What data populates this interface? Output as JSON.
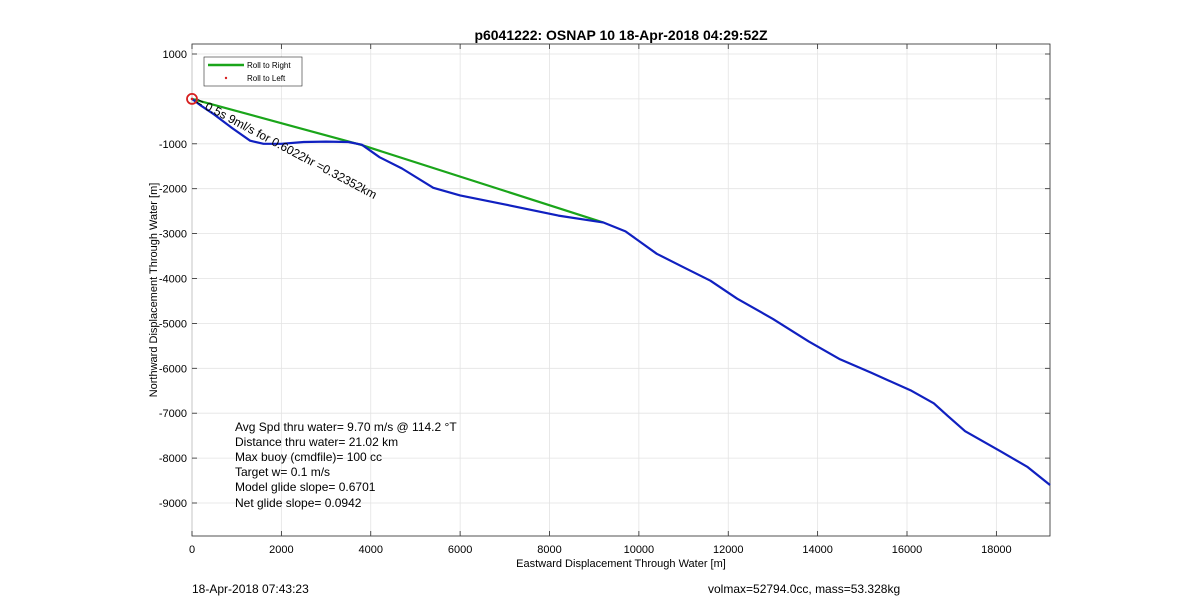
{
  "chart_data": {
    "type": "line",
    "title": "p6041222: OSNAP 10 18-Apr-2018 04:29:52Z",
    "xlabel": "Eastward Displacement Through Water [m]",
    "ylabel": "Northward Displacement Through Water [m]",
    "xlim": [
      0,
      19200
    ],
    "ylim": [
      -10000,
      1000
    ],
    "xticks": [
      0,
      2000,
      4000,
      6000,
      8000,
      10000,
      12000,
      14000,
      16000,
      18000
    ],
    "yticks": [
      1000,
      -1000,
      -2000,
      -3000,
      -4000,
      -5000,
      -6000,
      -7000,
      -8000,
      -9000
    ],
    "grid": true,
    "legend_placement": "top-left",
    "series": [
      {
        "name": "Roll to Right",
        "color": "#1aa51a",
        "x": [
          0,
          3800,
          9200
        ],
        "y": [
          0,
          -1030,
          -2750
        ]
      },
      {
        "name": "Roll to Left",
        "color": "#d62020",
        "marker_only": true,
        "x": [
          0
        ],
        "y": [
          0
        ]
      },
      {
        "name": "",
        "color": "#1020c0",
        "x": [
          0,
          200,
          500,
          900,
          1300,
          1600,
          2000,
          2500,
          3000,
          3500,
          3800,
          4200,
          4700,
          5400,
          6000,
          7000,
          8200,
          9200,
          9700,
          10400,
          11000,
          11600,
          12200,
          13000,
          13800,
          14500,
          15200,
          16100,
          16600,
          16900,
          17300,
          18100,
          18700,
          19200
        ],
        "y": [
          0,
          -150,
          -350,
          -650,
          -930,
          -1000,
          -1000,
          -960,
          -950,
          -960,
          -1020,
          -1300,
          -1550,
          -1980,
          -2150,
          -2350,
          -2600,
          -2750,
          -2950,
          -3450,
          -3750,
          -4050,
          -4450,
          -4900,
          -5400,
          -5800,
          -6100,
          -6500,
          -6780,
          -7050,
          -7400,
          -7850,
          -8200,
          -8600
        ]
      }
    ],
    "annotation": "= 0.5s 9ml/s for 0.6022hr =0.32352km",
    "stats": [
      "Avg Spd thru water=  9.70 m/s @ 114.2 °T",
      "Distance thru water= 21.02 km",
      "Max buoy (cmdfile)= 100 cc",
      "Target w= 0.1 m/s",
      "Model glide slope= 0.6701",
      "Net glide slope= 0.0942"
    ]
  },
  "footer": {
    "timestamp": "18-Apr-2018 07:43:23",
    "volmass": "volmax=52794.0cc, mass=53.328kg"
  }
}
